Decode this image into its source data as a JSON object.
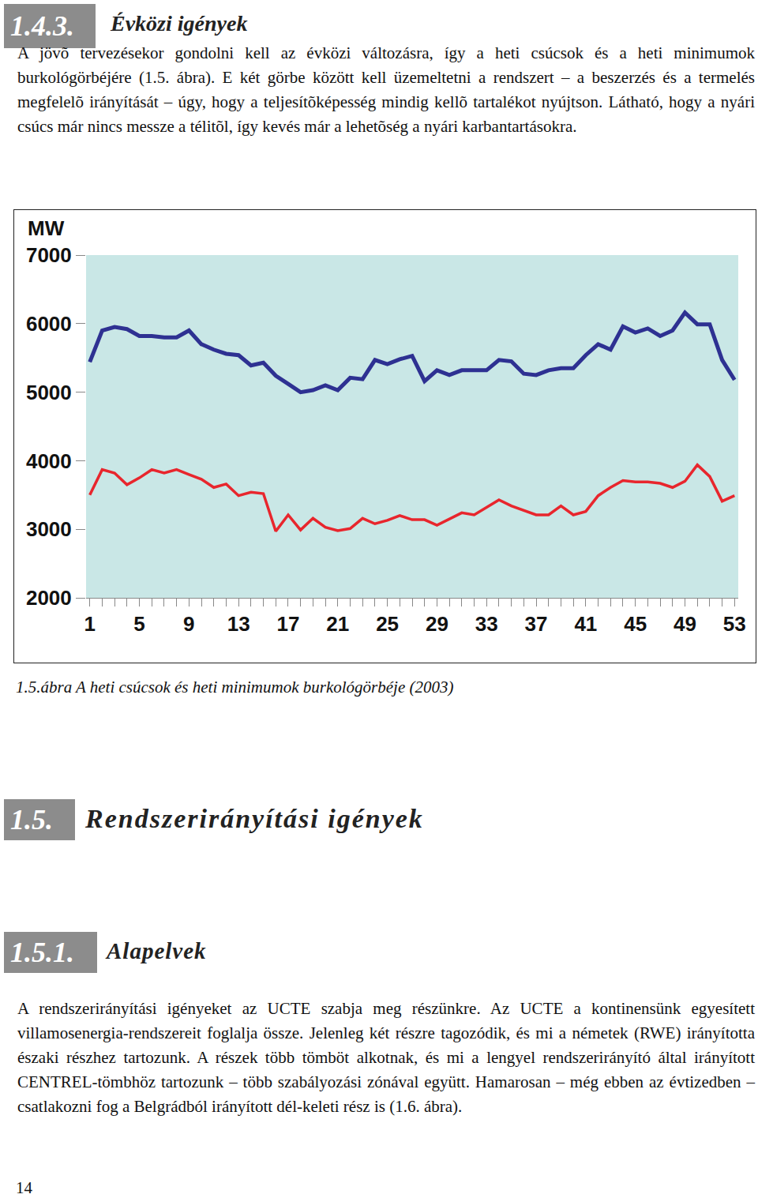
{
  "document": {
    "section_1": {
      "number": "1.4.3.",
      "title": "Évközi igények",
      "text": "A jövõ tervezésekor gondolni kell az évközi változásra, így a heti csúcsok és a heti minimumok burkológörbéjére (1.5. ábra). E két görbe között kell üzemeltetni a rendszert – a beszerzés és a termelés megfelelõ irányítását – úgy, hogy a teljesítõképesség mindig kellõ tartalékot nyújtson. Látható, hogy a nyári csúcs már nincs messze a télitõl, így kevés már a lehetõség a nyári karbantartásokra."
    },
    "figure_caption": "1.5.ábra A heti csúcsok és heti minimumok burkológörbéje (2003)",
    "section_2": {
      "number": "1.5.",
      "title": "Rendszerirányítási igények"
    },
    "section_3": {
      "number": "1.5.1.",
      "title": "Alapelvek",
      "text": "A rendszerirányítási igényeket az UCTE szabja meg részünkre. Az UCTE a kontinensünk egyesített villamosenergia-rendszereit foglalja össze. Jelenleg két részre tagozódik, és mi a németek (RWE) irányította északi részhez tartozunk. A részek több tömböt alkotnak, és mi a lengyel rendszerirányító által irányított CENTREL-tömbhöz tartozunk – több szabályozási zónával együtt. Hamarosan – még ebben az évtizedben – csatlakozni fog a Belgrádból irányított dél-keleti rész is (1.6. ábra)."
    },
    "page_number": "14"
  },
  "chart_data": {
    "type": "line",
    "ylabel": "MW",
    "x": [
      1,
      2,
      3,
      4,
      5,
      6,
      7,
      8,
      9,
      10,
      11,
      12,
      13,
      14,
      15,
      16,
      17,
      18,
      19,
      20,
      21,
      22,
      23,
      24,
      25,
      26,
      27,
      28,
      29,
      30,
      31,
      32,
      33,
      34,
      35,
      36,
      37,
      38,
      39,
      40,
      41,
      42,
      43,
      44,
      45,
      46,
      47,
      48,
      49,
      50,
      51,
      52,
      53
    ],
    "xlim": [
      0.7,
      53.3
    ],
    "xticks": [
      1,
      5,
      9,
      13,
      17,
      21,
      25,
      29,
      33,
      37,
      41,
      45,
      49,
      53
    ],
    "ylim": [
      2000,
      7000
    ],
    "yticks": [
      2000,
      3000,
      4000,
      5000,
      6000,
      7000
    ],
    "grid": false,
    "series": [
      {
        "color": "#2e3192",
        "values": [
          5440,
          5900,
          5950,
          5920,
          5820,
          5820,
          5800,
          5800,
          5900,
          5700,
          5620,
          5560,
          5540,
          5390,
          5430,
          5240,
          5120,
          5000,
          5030,
          5100,
          5030,
          5210,
          5190,
          5470,
          5410,
          5480,
          5530,
          5160,
          5320,
          5250,
          5320,
          5320,
          5320,
          5470,
          5450,
          5270,
          5250,
          5320,
          5350,
          5350,
          5540,
          5700,
          5620,
          5960,
          5870,
          5930,
          5820,
          5900,
          6160,
          5990,
          5990,
          5470,
          5180
        ]
      },
      {
        "color": "#e8262d",
        "values": [
          3500,
          3870,
          3820,
          3650,
          3750,
          3870,
          3820,
          3870,
          3800,
          3730,
          3610,
          3660,
          3490,
          3540,
          3520,
          2970,
          3210,
          2990,
          3160,
          3030,
          2980,
          3010,
          3160,
          3080,
          3130,
          3200,
          3140,
          3140,
          3060,
          3150,
          3240,
          3210,
          3320,
          3430,
          3340,
          3270,
          3210,
          3210,
          3340,
          3210,
          3260,
          3490,
          3610,
          3710,
          3690,
          3690,
          3670,
          3610,
          3700,
          3940,
          3770,
          3410,
          3490
        ]
      }
    ]
  }
}
